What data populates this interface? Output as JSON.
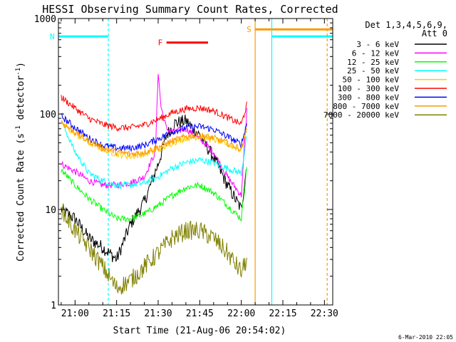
{
  "chart_data": {
    "type": "line",
    "title": "HESSI Observing Summary Count Rates, Corrected",
    "xlabel": "Start Time (21-Aug-06 20:54:02)",
    "ylabel_main": "Corrected Count Rate (s",
    "ylabel_sup1": "-1",
    "ylabel_mid": " detector",
    "ylabel_sup2": "-1",
    "ylabel_end": ")",
    "y_scale": "log",
    "ylim": [
      1,
      1000
    ],
    "xlim": [
      "20:54",
      "22:33"
    ],
    "x_ticks": [
      {
        "t": "21:00",
        "label": "21:00"
      },
      {
        "t": "21:15",
        "label": "21:15"
      },
      {
        "t": "21:30",
        "label": "21:30"
      },
      {
        "t": "21:45",
        "label": "21:45"
      },
      {
        "t": "22:00",
        "label": "22:00"
      },
      {
        "t": "22:15",
        "label": "22:15"
      },
      {
        "t": "22:30",
        "label": "22:30"
      }
    ],
    "y_ticks": [
      {
        "v": 1,
        "label": "1"
      },
      {
        "v": 10,
        "label": "10"
      },
      {
        "v": 100,
        "label": "100"
      },
      {
        "v": 1000,
        "label": "1000"
      }
    ],
    "legend_header": [
      "Det 1,3,4,5,6,9,",
      "Att 0"
    ],
    "legend_placement": "right",
    "series": [
      {
        "name": "3 - 6 keV",
        "color": "#000000",
        "x": [
          "20:55",
          "21:00",
          "21:05",
          "21:10",
          "21:15",
          "21:20",
          "21:25",
          "21:30",
          "21:33",
          "21:36",
          "21:40",
          "21:45",
          "21:50",
          "21:55",
          "22:00",
          "22:02"
        ],
        "y": [
          10,
          8,
          5,
          4,
          3,
          7,
          12,
          30,
          60,
          80,
          85,
          60,
          35,
          18,
          10,
          30
        ]
      },
      {
        "name": "6 - 12 keV",
        "color": "#ff00ff",
        "x": [
          "20:55",
          "21:00",
          "21:05",
          "21:10",
          "21:15",
          "21:20",
          "21:25",
          "21:29",
          "21:30",
          "21:31",
          "21:33",
          "21:36",
          "21:40",
          "21:45",
          "21:50",
          "21:55",
          "22:00",
          "22:02"
        ],
        "y": [
          30,
          25,
          20,
          18,
          18,
          19,
          22,
          40,
          280,
          120,
          70,
          65,
          70,
          55,
          40,
          22,
          14,
          110
        ]
      },
      {
        "name": "12 - 25 keV",
        "color": "#00ff00",
        "x": [
          "20:55",
          "21:00",
          "21:05",
          "21:10",
          "21:15",
          "21:20",
          "21:25",
          "21:30",
          "21:35",
          "21:40",
          "21:45",
          "21:50",
          "21:55",
          "22:00",
          "22:02"
        ],
        "y": [
          26,
          18,
          13,
          10,
          8,
          8,
          9,
          11,
          14,
          17,
          18,
          15,
          11,
          8,
          28
        ]
      },
      {
        "name": "25 - 50 keV",
        "color": "#00ffff",
        "x": [
          "20:55",
          "21:00",
          "21:05",
          "21:10",
          "21:15",
          "21:20",
          "21:25",
          "21:30",
          "21:35",
          "21:40",
          "21:45",
          "21:50",
          "21:55",
          "22:00",
          "22:02"
        ],
        "y": [
          85,
          40,
          24,
          20,
          18,
          18,
          19,
          22,
          27,
          31,
          33,
          31,
          27,
          24,
          60
        ]
      },
      {
        "name": "50 - 100 keV",
        "color": "#ffcc00",
        "x": [
          "20:55",
          "21:00",
          "21:05",
          "21:10",
          "21:15",
          "21:20",
          "21:25",
          "21:30",
          "21:35",
          "21:40",
          "21:45",
          "21:50",
          "21:55",
          "22:00",
          "22:02"
        ],
        "y": [
          80,
          62,
          50,
          43,
          38,
          36,
          38,
          42,
          50,
          56,
          58,
          54,
          48,
          42,
          70
        ]
      },
      {
        "name": "100 - 300 keV",
        "color": "#ff0000",
        "x": [
          "20:55",
          "21:00",
          "21:05",
          "21:10",
          "21:15",
          "21:20",
          "21:25",
          "21:30",
          "21:35",
          "21:40",
          "21:45",
          "21:50",
          "21:55",
          "22:00",
          "22:02"
        ],
        "y": [
          150,
          115,
          90,
          78,
          72,
          72,
          77,
          88,
          103,
          113,
          116,
          108,
          92,
          78,
          125
        ]
      },
      {
        "name": "300 - 800 keV",
        "color": "#0000ff",
        "x": [
          "20:55",
          "21:00",
          "21:05",
          "21:10",
          "21:15",
          "21:20",
          "21:25",
          "21:30",
          "21:35",
          "21:40",
          "21:45",
          "21:50",
          "21:55",
          "22:00",
          "22:02"
        ],
        "y": [
          95,
          72,
          56,
          47,
          44,
          44,
          47,
          55,
          65,
          72,
          74,
          69,
          58,
          48,
          80
        ]
      },
      {
        "name": "800 - 7000 keV",
        "color": "#ff9900",
        "x": [
          "20:55",
          "21:00",
          "21:05",
          "21:10",
          "21:15",
          "21:20",
          "21:25",
          "21:30",
          "21:35",
          "21:40",
          "21:45",
          "21:50",
          "21:55",
          "22:00",
          "22:02"
        ],
        "y": [
          82,
          64,
          52,
          44,
          40,
          38,
          40,
          45,
          52,
          58,
          60,
          56,
          50,
          43,
          72
        ]
      },
      {
        "name": "7000 - 20000 keV",
        "color": "#808000",
        "x": [
          "20:55",
          "21:00",
          "21:05",
          "21:10",
          "21:15",
          "21:20",
          "21:25",
          "21:30",
          "21:35",
          "21:40",
          "21:45",
          "21:50",
          "21:55",
          "22:00",
          "22:02"
        ],
        "y": [
          10,
          6,
          4,
          2.5,
          1.5,
          1.8,
          2.5,
          3.5,
          5,
          6,
          6,
          5,
          3.5,
          2.2,
          3
        ]
      }
    ],
    "annotations": [
      {
        "kind": "bar",
        "label": "N",
        "color": "#00ffff",
        "level": 650,
        "from": "20:54",
        "to": "21:12"
      },
      {
        "kind": "vline",
        "color": "#00ffff",
        "style": "dashed",
        "t": "21:12"
      },
      {
        "kind": "bar",
        "label": "F",
        "color": "#ff0000",
        "level": 560,
        "from": "21:33",
        "to": "21:48"
      },
      {
        "kind": "bar",
        "label": "S",
        "color": "#ff9900",
        "level": 770,
        "from": "22:05",
        "to": "22:33"
      },
      {
        "kind": "vline",
        "color": "#ff9900",
        "style": "solid",
        "t": "22:05"
      },
      {
        "kind": "vline",
        "color": "#00ffff",
        "style": "solid",
        "t": "22:11"
      },
      {
        "kind": "bar",
        "label": "",
        "color": "#00ffff",
        "level": 650,
        "from": "22:11",
        "to": "22:33"
      },
      {
        "kind": "vline",
        "color": "#ff9900",
        "style": "dashed",
        "t": "22:31"
      }
    ],
    "footer_date": "6-Mar-2010 22:05",
    "grid": false
  }
}
